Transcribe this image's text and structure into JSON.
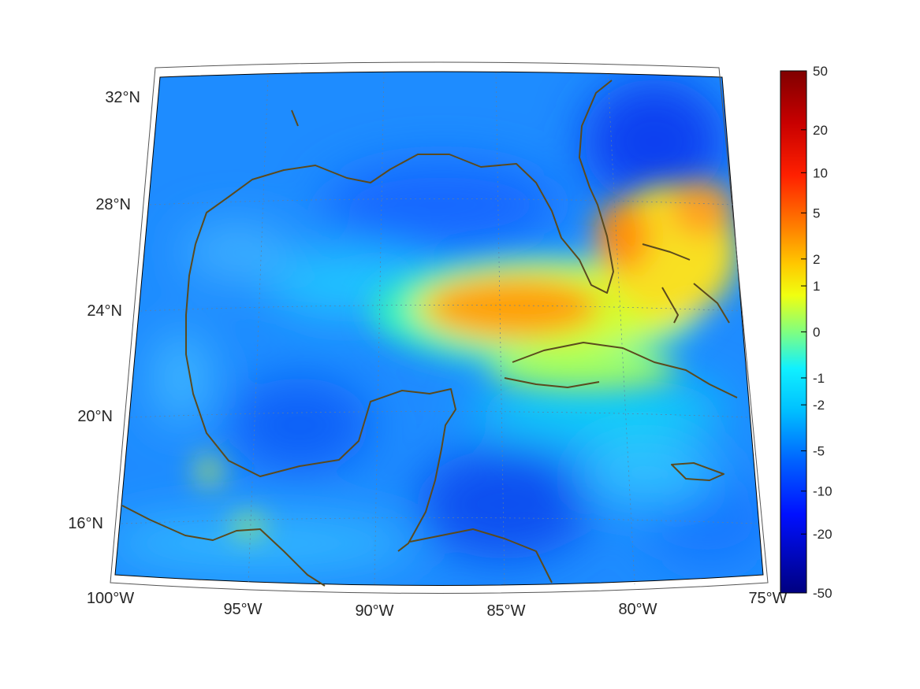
{
  "map": {
    "region": "Gulf of Mexico and Caribbean",
    "projection": "conic",
    "colormap": "jet",
    "coastline_color": "#5a4a1e",
    "grid": true,
    "lon_ticks": [
      "100°W",
      "95°W",
      "90°W",
      "85°W",
      "80°W",
      "75°W"
    ],
    "lat_ticks": [
      "32°N",
      "28°N",
      "24°N",
      "20°N",
      "16°N"
    ]
  },
  "colorbar": {
    "labels": [
      "50",
      "20",
      "10",
      "5",
      "2",
      "1",
      "0",
      "-1",
      "-2",
      "-5",
      "-10",
      "-20",
      "-50"
    ],
    "max": 50,
    "min": -50,
    "scale": "symmetric-log"
  },
  "colors": {
    "background": "#ffffff",
    "ocean_base": "#1e8cff",
    "coast": "#5a4a1e"
  }
}
